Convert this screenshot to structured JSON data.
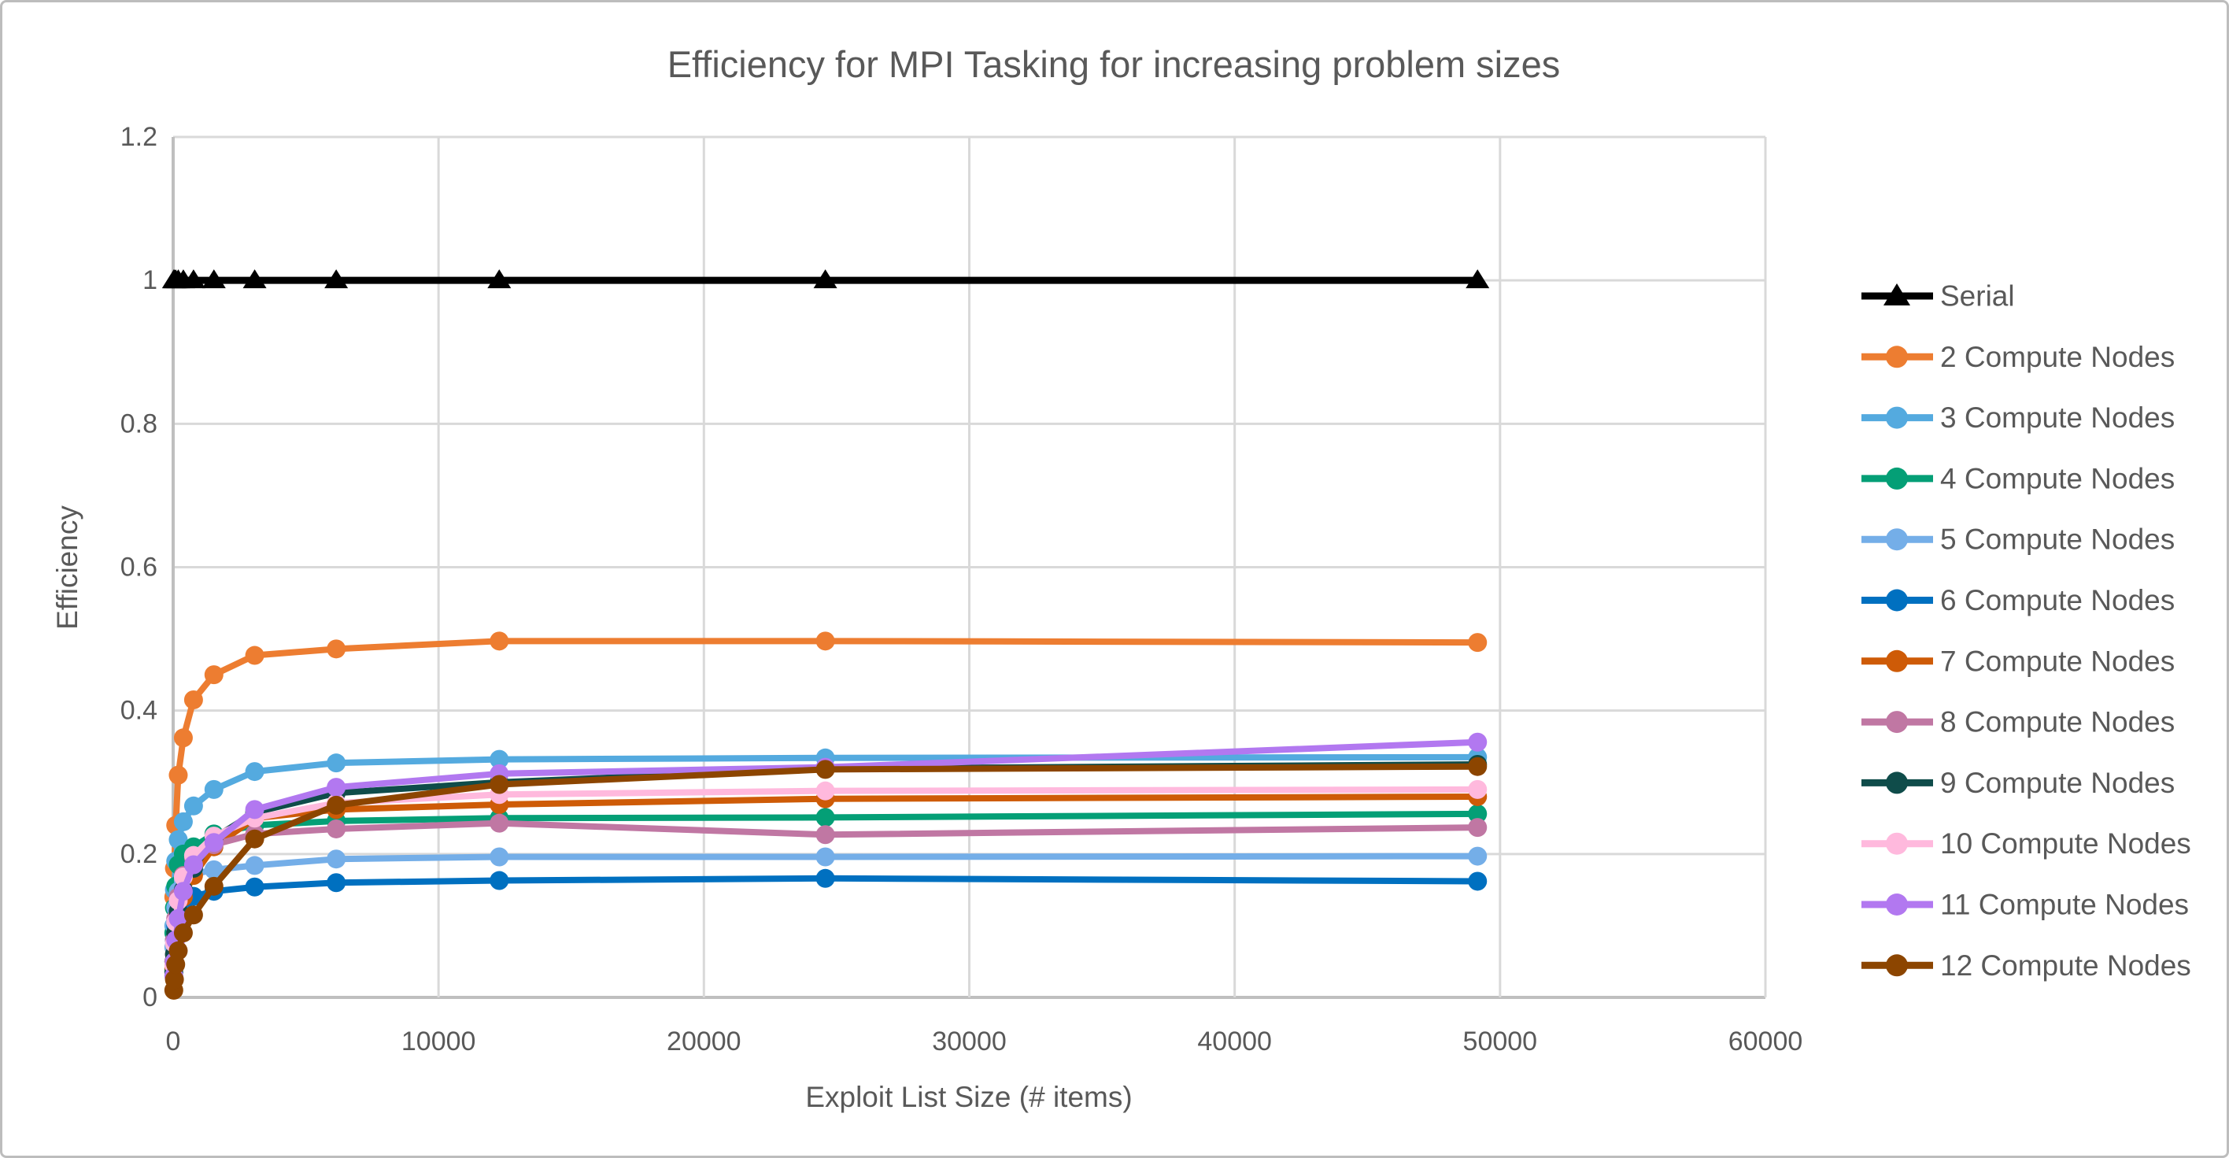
{
  "frame": {
    "background": "#FFFFFF",
    "border_color": "#BDBDBD"
  },
  "chart_data": {
    "type": "line",
    "title": "Efficiency for MPI Tasking for increasing problem sizes",
    "xlabel": "Exploit List Size (# items)",
    "ylabel": "Efficiency",
    "xlim": [
      0,
      60000
    ],
    "ylim": [
      0,
      1.2
    ],
    "x_ticks": [
      0,
      10000,
      20000,
      30000,
      40000,
      50000,
      60000
    ],
    "y_ticks": [
      0,
      0.2,
      0.4,
      0.6,
      0.8,
      1,
      1.2
    ],
    "grid": true,
    "legend_position": "right",
    "text_color": "#595959",
    "grid_color": "#D9D9D9",
    "axis_color": "#BFBFBF",
    "x": [
      24,
      48,
      96,
      192,
      384,
      768,
      1536,
      3072,
      6144,
      12288,
      24576,
      49152
    ],
    "series": [
      {
        "name": "Serial",
        "color": "#000000",
        "marker": "triangle",
        "values": [
          1,
          1,
          1,
          1,
          1,
          1,
          1,
          1,
          1,
          1,
          1,
          1
        ]
      },
      {
        "name": "2 Compute Nodes",
        "color": "#ED7D31",
        "marker": "circle",
        "values": [
          0.14,
          0.18,
          0.24,
          0.31,
          0.362,
          0.415,
          0.45,
          0.477,
          0.486,
          0.497,
          0.497,
          0.495
        ]
      },
      {
        "name": "3 Compute Nodes",
        "color": "#54AADF",
        "marker": "circle",
        "values": [
          0.1,
          0.15,
          0.19,
          0.22,
          0.245,
          0.267,
          0.29,
          0.315,
          0.327,
          0.332,
          0.334,
          0.335
        ]
      },
      {
        "name": "4 Compute Nodes",
        "color": "#049F76",
        "marker": "circle",
        "values": [
          0.09,
          0.125,
          0.155,
          0.185,
          0.2,
          0.21,
          0.228,
          0.24,
          0.246,
          0.25,
          0.251,
          0.256
        ]
      },
      {
        "name": "5 Compute Nodes",
        "color": "#74AEE8",
        "marker": "circle",
        "values": [
          0.07,
          0.1,
          0.125,
          0.148,
          0.163,
          0.172,
          0.178,
          0.184,
          0.193,
          0.196,
          0.196,
          0.197
        ]
      },
      {
        "name": "6 Compute Nodes",
        "color": "#0070C0",
        "marker": "circle",
        "values": [
          0.05,
          0.08,
          0.1,
          0.12,
          0.133,
          0.141,
          0.148,
          0.154,
          0.16,
          0.163,
          0.166,
          0.162
        ]
      },
      {
        "name": "7 Compute Nodes",
        "color": "#CE5B07",
        "marker": "circle",
        "values": [
          0.04,
          0.06,
          0.085,
          0.11,
          0.14,
          0.17,
          0.21,
          0.25,
          0.262,
          0.269,
          0.277,
          0.28
        ]
      },
      {
        "name": "8 Compute Nodes",
        "color": "#C077A3",
        "marker": "circle",
        "values": [
          0.05,
          0.08,
          0.11,
          0.14,
          0.17,
          0.195,
          0.213,
          0.228,
          0.235,
          0.243,
          0.227,
          0.237
        ]
      },
      {
        "name": "9 Compute Nodes",
        "color": "#0F4C4A",
        "marker": "circle",
        "values": [
          0.035,
          0.06,
          0.09,
          0.12,
          0.15,
          0.18,
          0.222,
          0.258,
          0.285,
          0.3,
          0.319,
          0.325
        ]
      },
      {
        "name": "10 Compute Nodes",
        "color": "#FFB9DD",
        "marker": "circle",
        "values": [
          0.045,
          0.075,
          0.105,
          0.135,
          0.168,
          0.198,
          0.225,
          0.25,
          0.271,
          0.283,
          0.288,
          0.29
        ]
      },
      {
        "name": "11 Compute Nodes",
        "color": "#B278F0",
        "marker": "circle",
        "values": [
          0.03,
          0.05,
          0.08,
          0.11,
          0.148,
          0.185,
          0.216,
          0.262,
          0.293,
          0.312,
          0.321,
          0.356
        ]
      },
      {
        "name": "12 Compute Nodes",
        "color": "#8C4500",
        "marker": "circle",
        "values": [
          0.01,
          0.025,
          0.046,
          0.065,
          0.09,
          0.115,
          0.155,
          0.221,
          0.268,
          0.297,
          0.318,
          0.322
        ]
      }
    ]
  }
}
